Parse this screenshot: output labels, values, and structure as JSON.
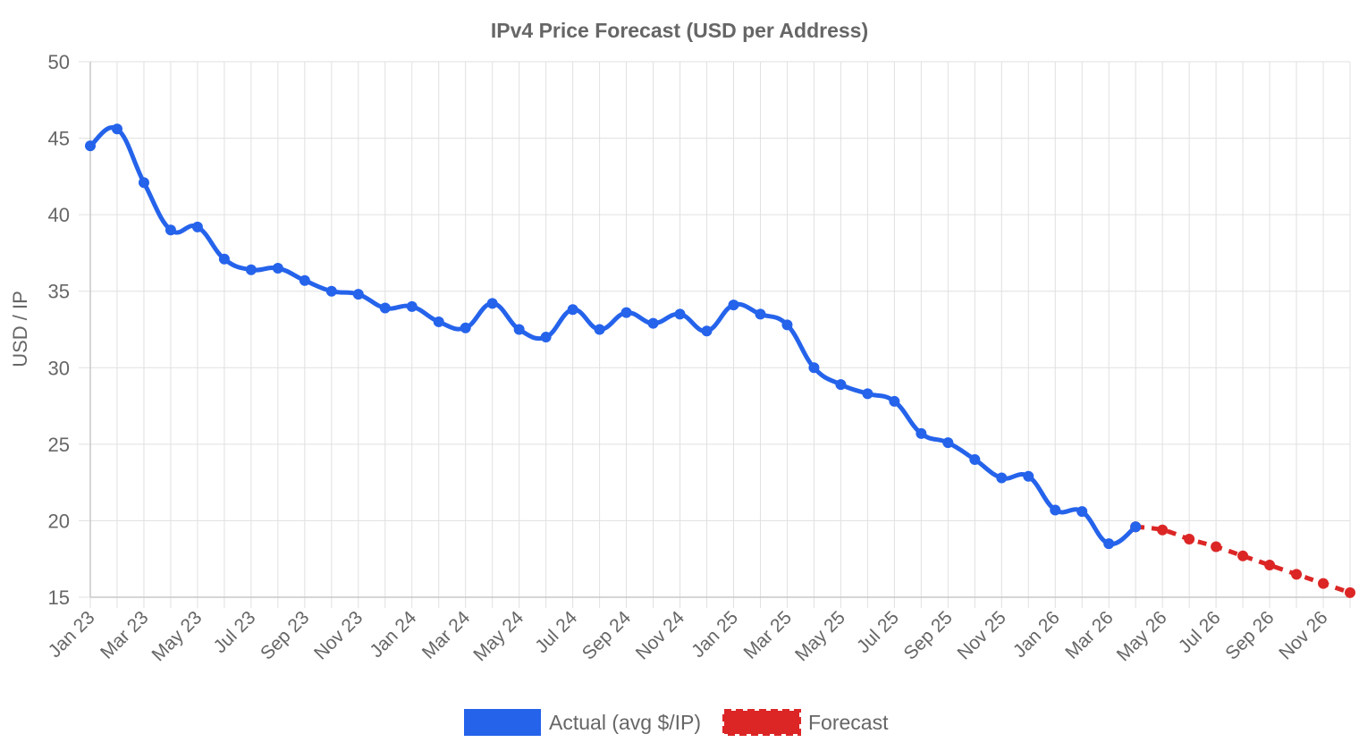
{
  "chart_data": {
    "type": "line",
    "title": "IPv4 Price Forecast (USD per Address)",
    "xlabel": "",
    "ylabel": "USD / IP",
    "ylim": [
      15,
      50
    ],
    "y_ticks": [
      "15",
      "20",
      "25",
      "30",
      "35",
      "40",
      "45",
      "50"
    ],
    "categories": [
      "Jan 23",
      "Feb 23",
      "Mar 23",
      "Apr 23",
      "May 23",
      "Jun 23",
      "Jul 23",
      "Aug 23",
      "Sep 23",
      "Oct 23",
      "Nov 23",
      "Dec 23",
      "Jan 24",
      "Feb 24",
      "Mar 24",
      "Apr 24",
      "May 24",
      "Jun 24",
      "Jul 24",
      "Aug 24",
      "Sep 24",
      "Oct 24",
      "Nov 24",
      "Dec 24",
      "Jan 25",
      "Feb 25",
      "Mar 25",
      "Apr 25",
      "May 25",
      "Jun 25",
      "Jul 25",
      "Aug 25",
      "Sep 25",
      "Oct 25",
      "Nov 25",
      "Dec 25",
      "Jan 26",
      "Feb 26",
      "Mar 26",
      "Apr 26",
      "May 26",
      "Jun 26",
      "Jul 26",
      "Aug 26",
      "Sep 26",
      "Oct 26",
      "Nov 26",
      "Dec 26"
    ],
    "x_tick_labels": [
      "Jan 23",
      "Mar 23",
      "May 23",
      "Jul 23",
      "Sep 23",
      "Nov 23",
      "Jan 24",
      "Mar 24",
      "May 24",
      "Jul 24",
      "Sep 24",
      "Nov 24",
      "Jan 25",
      "Mar 25",
      "May 25",
      "Jul 25",
      "Sep 25",
      "Nov 25",
      "Jan 26",
      "Mar 26",
      "May 26",
      "Jul 26",
      "Sep 26",
      "Nov 26"
    ],
    "grid": true,
    "legend_position": "bottom",
    "series": [
      {
        "name": "Actual (avg $/IP)",
        "color": "#2563eb",
        "style": "solid",
        "values": [
          44.5,
          45.6,
          42.1,
          39.0,
          39.2,
          37.1,
          36.4,
          36.5,
          35.7,
          35.0,
          34.8,
          33.9,
          34.0,
          33.0,
          32.6,
          34.2,
          32.5,
          32.0,
          33.8,
          32.5,
          33.6,
          32.9,
          33.5,
          32.4,
          34.1,
          33.5,
          32.8,
          30.0,
          28.9,
          28.3,
          27.8,
          25.7,
          25.1,
          24.0,
          22.8,
          22.9,
          20.7,
          20.6,
          18.5,
          19.6,
          null,
          null,
          null,
          null,
          null,
          null,
          null,
          null
        ]
      },
      {
        "name": "Forecast",
        "color": "#dc2626",
        "style": "dashed",
        "values": [
          null,
          null,
          null,
          null,
          null,
          null,
          null,
          null,
          null,
          null,
          null,
          null,
          null,
          null,
          null,
          null,
          null,
          null,
          null,
          null,
          null,
          null,
          null,
          null,
          null,
          null,
          null,
          null,
          null,
          null,
          null,
          null,
          null,
          null,
          null,
          null,
          null,
          null,
          null,
          19.6,
          19.4,
          18.8,
          18.3,
          17.7,
          17.1,
          16.5,
          15.9,
          15.3
        ]
      }
    ]
  }
}
